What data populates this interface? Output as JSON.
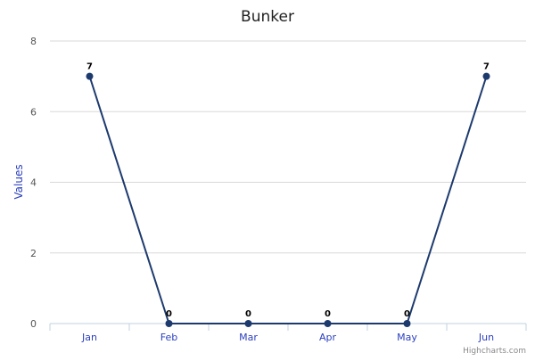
{
  "chart_data": {
    "type": "line",
    "title": "Bunker",
    "xlabel": "",
    "ylabel": "Values",
    "categories": [
      "Jan",
      "Feb",
      "Mar",
      "Apr",
      "May",
      "Jun"
    ],
    "series": [
      {
        "values": [
          7,
          0,
          0,
          0,
          0,
          7
        ]
      }
    ],
    "ylim": [
      0,
      8
    ],
    "yticks": [
      0,
      2,
      4,
      6,
      8
    ],
    "grid": true,
    "data_labels": true,
    "colors": {
      "line": "#1d3a6e",
      "point": "#1d3a6e",
      "grid": "#d8d8d8",
      "axis": "#c0d0e0",
      "category_text": "#2a3fbf"
    }
  },
  "credits": "Highcharts.com"
}
